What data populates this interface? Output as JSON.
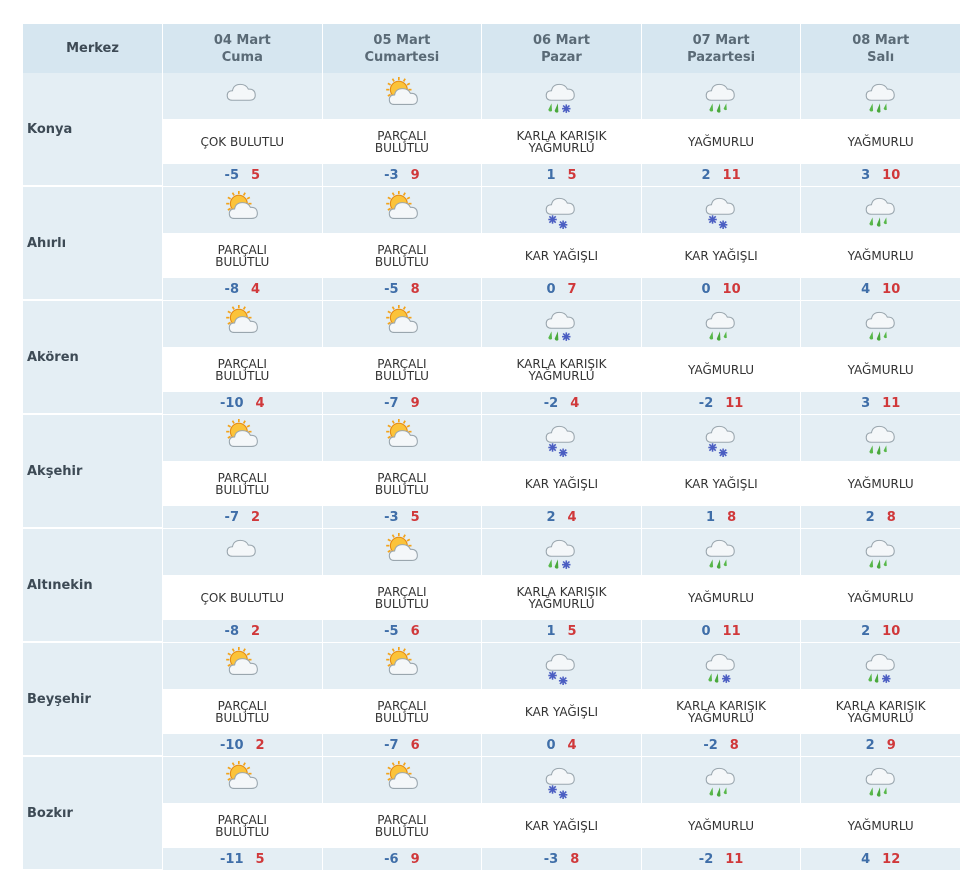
{
  "header": {
    "city_col": "Merkez",
    "days": [
      {
        "date": "04 Mart",
        "name": "Cuma"
      },
      {
        "date": "05 Mart",
        "name": "Cumartesi"
      },
      {
        "date": "06 Mart",
        "name": "Pazar"
      },
      {
        "date": "07 Mart",
        "name": "Pazartesi"
      },
      {
        "date": "08 Mart",
        "name": "Salı"
      }
    ]
  },
  "colors": {
    "low": "#3f6ea8",
    "high": "#d0383a",
    "header_bg": "#d6e6f0",
    "band_bg": "#e4eef4"
  },
  "rows": [
    {
      "city": "Konya",
      "days": [
        {
          "icon": "cloudy-icon",
          "desc": "ÇOK BULUTLU",
          "lo": "-5",
          "hi": "5"
        },
        {
          "icon": "partly-cloudy-icon",
          "desc": "PARÇALI BULUTLU",
          "lo": "-3",
          "hi": "9"
        },
        {
          "icon": "sleet-icon",
          "desc": "KARLA KARIŞIK YAĞMURLU",
          "lo": "1",
          "hi": "5"
        },
        {
          "icon": "rain-icon",
          "desc": "YAĞMURLU",
          "lo": "2",
          "hi": "11"
        },
        {
          "icon": "rain-icon",
          "desc": "YAĞMURLU",
          "lo": "3",
          "hi": "10"
        }
      ]
    },
    {
      "city": "Ahırlı",
      "days": [
        {
          "icon": "partly-cloudy-icon",
          "desc": "PARÇALI BULUTLU",
          "lo": "-8",
          "hi": "4"
        },
        {
          "icon": "partly-cloudy-icon",
          "desc": "PARÇALI BULUTLU",
          "lo": "-5",
          "hi": "8"
        },
        {
          "icon": "snow-icon",
          "desc": "KAR YAĞIŞLI",
          "lo": "0",
          "hi": "7"
        },
        {
          "icon": "snow-icon",
          "desc": "KAR YAĞIŞLI",
          "lo": "0",
          "hi": "10"
        },
        {
          "icon": "rain-icon",
          "desc": "YAĞMURLU",
          "lo": "4",
          "hi": "10"
        }
      ]
    },
    {
      "city": "Akören",
      "days": [
        {
          "icon": "partly-cloudy-icon",
          "desc": "PARÇALI BULUTLU",
          "lo": "-10",
          "hi": "4"
        },
        {
          "icon": "partly-cloudy-icon",
          "desc": "PARÇALI BULUTLU",
          "lo": "-7",
          "hi": "9"
        },
        {
          "icon": "sleet-icon",
          "desc": "KARLA KARIŞIK YAĞMURLU",
          "lo": "-2",
          "hi": "4"
        },
        {
          "icon": "rain-icon",
          "desc": "YAĞMURLU",
          "lo": "-2",
          "hi": "11"
        },
        {
          "icon": "rain-icon",
          "desc": "YAĞMURLU",
          "lo": "3",
          "hi": "11"
        }
      ]
    },
    {
      "city": "Akşehir",
      "days": [
        {
          "icon": "partly-cloudy-icon",
          "desc": "PARÇALI BULUTLU",
          "lo": "-7",
          "hi": "2"
        },
        {
          "icon": "partly-cloudy-icon",
          "desc": "PARÇALI BULUTLU",
          "lo": "-3",
          "hi": "5"
        },
        {
          "icon": "snow-icon",
          "desc": "KAR YAĞIŞLI",
          "lo": "2",
          "hi": "4"
        },
        {
          "icon": "snow-icon",
          "desc": "KAR YAĞIŞLI",
          "lo": "1",
          "hi": "8"
        },
        {
          "icon": "rain-icon",
          "desc": "YAĞMURLU",
          "lo": "2",
          "hi": "8"
        }
      ]
    },
    {
      "city": "Altınekin",
      "days": [
        {
          "icon": "cloudy-icon",
          "desc": "ÇOK BULUTLU",
          "lo": "-8",
          "hi": "2"
        },
        {
          "icon": "partly-cloudy-icon",
          "desc": "PARÇALI BULUTLU",
          "lo": "-5",
          "hi": "6"
        },
        {
          "icon": "sleet-icon",
          "desc": "KARLA KARIŞIK YAĞMURLU",
          "lo": "1",
          "hi": "5"
        },
        {
          "icon": "rain-icon",
          "desc": "YAĞMURLU",
          "lo": "0",
          "hi": "11"
        },
        {
          "icon": "rain-icon",
          "desc": "YAĞMURLU",
          "lo": "2",
          "hi": "10"
        }
      ]
    },
    {
      "city": "Beyşehir",
      "days": [
        {
          "icon": "partly-cloudy-icon",
          "desc": "PARÇALI BULUTLU",
          "lo": "-10",
          "hi": "2"
        },
        {
          "icon": "partly-cloudy-icon",
          "desc": "PARÇALI BULUTLU",
          "lo": "-7",
          "hi": "6"
        },
        {
          "icon": "snow-icon",
          "desc": "KAR YAĞIŞLI",
          "lo": "0",
          "hi": "4"
        },
        {
          "icon": "sleet-icon",
          "desc": "KARLA KARIŞIK YAĞMURLU",
          "lo": "-2",
          "hi": "8"
        },
        {
          "icon": "sleet-icon",
          "desc": "KARLA KARIŞIK YAĞMURLU",
          "lo": "2",
          "hi": "9"
        }
      ]
    },
    {
      "city": "Bozkır",
      "days": [
        {
          "icon": "partly-cloudy-icon",
          "desc": "PARÇALI BULUTLU",
          "lo": "-11",
          "hi": "5"
        },
        {
          "icon": "partly-cloudy-icon",
          "desc": "PARÇALI BULUTLU",
          "lo": "-6",
          "hi": "9"
        },
        {
          "icon": "snow-icon",
          "desc": "KAR YAĞIŞLI",
          "lo": "-3",
          "hi": "8"
        },
        {
          "icon": "rain-icon",
          "desc": "YAĞMURLU",
          "lo": "-2",
          "hi": "11"
        },
        {
          "icon": "rain-icon",
          "desc": "YAĞMURLU",
          "lo": "4",
          "hi": "12"
        }
      ]
    }
  ]
}
